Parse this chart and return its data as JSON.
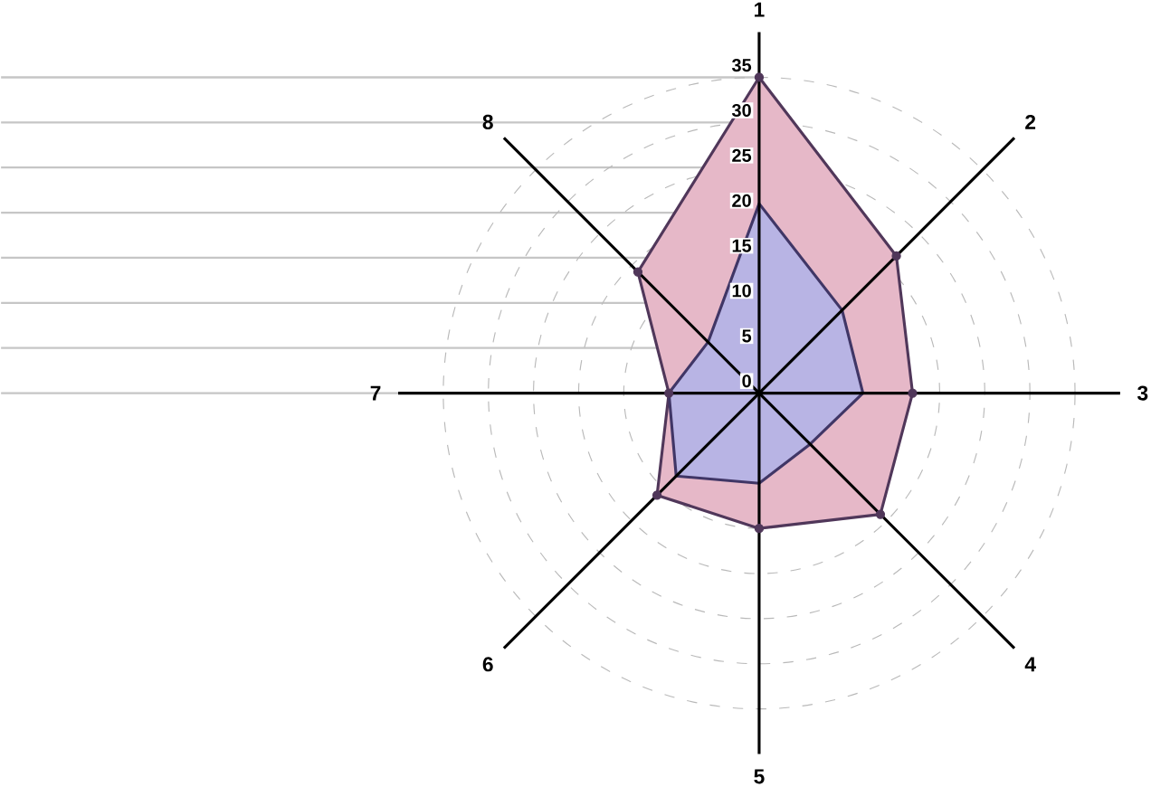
{
  "chart_data": {
    "type": "radar",
    "categories": [
      "1",
      "2",
      "3",
      "4",
      "5",
      "6",
      "7",
      "8"
    ],
    "series": [
      {
        "color": "#e6b8c8",
        "values": [
          35,
          21.5,
          17,
          19,
          15,
          16,
          10,
          19
        ]
      },
      {
        "color": "#b8b4e4",
        "values": [
          21,
          13,
          11.5,
          8,
          10,
          13,
          10,
          8
        ]
      }
    ],
    "ylim": [
      0,
      35
    ],
    "yticks": [
      0,
      5,
      10,
      15,
      20,
      25,
      30,
      35
    ],
    "grid": true,
    "marker": "circle"
  }
}
